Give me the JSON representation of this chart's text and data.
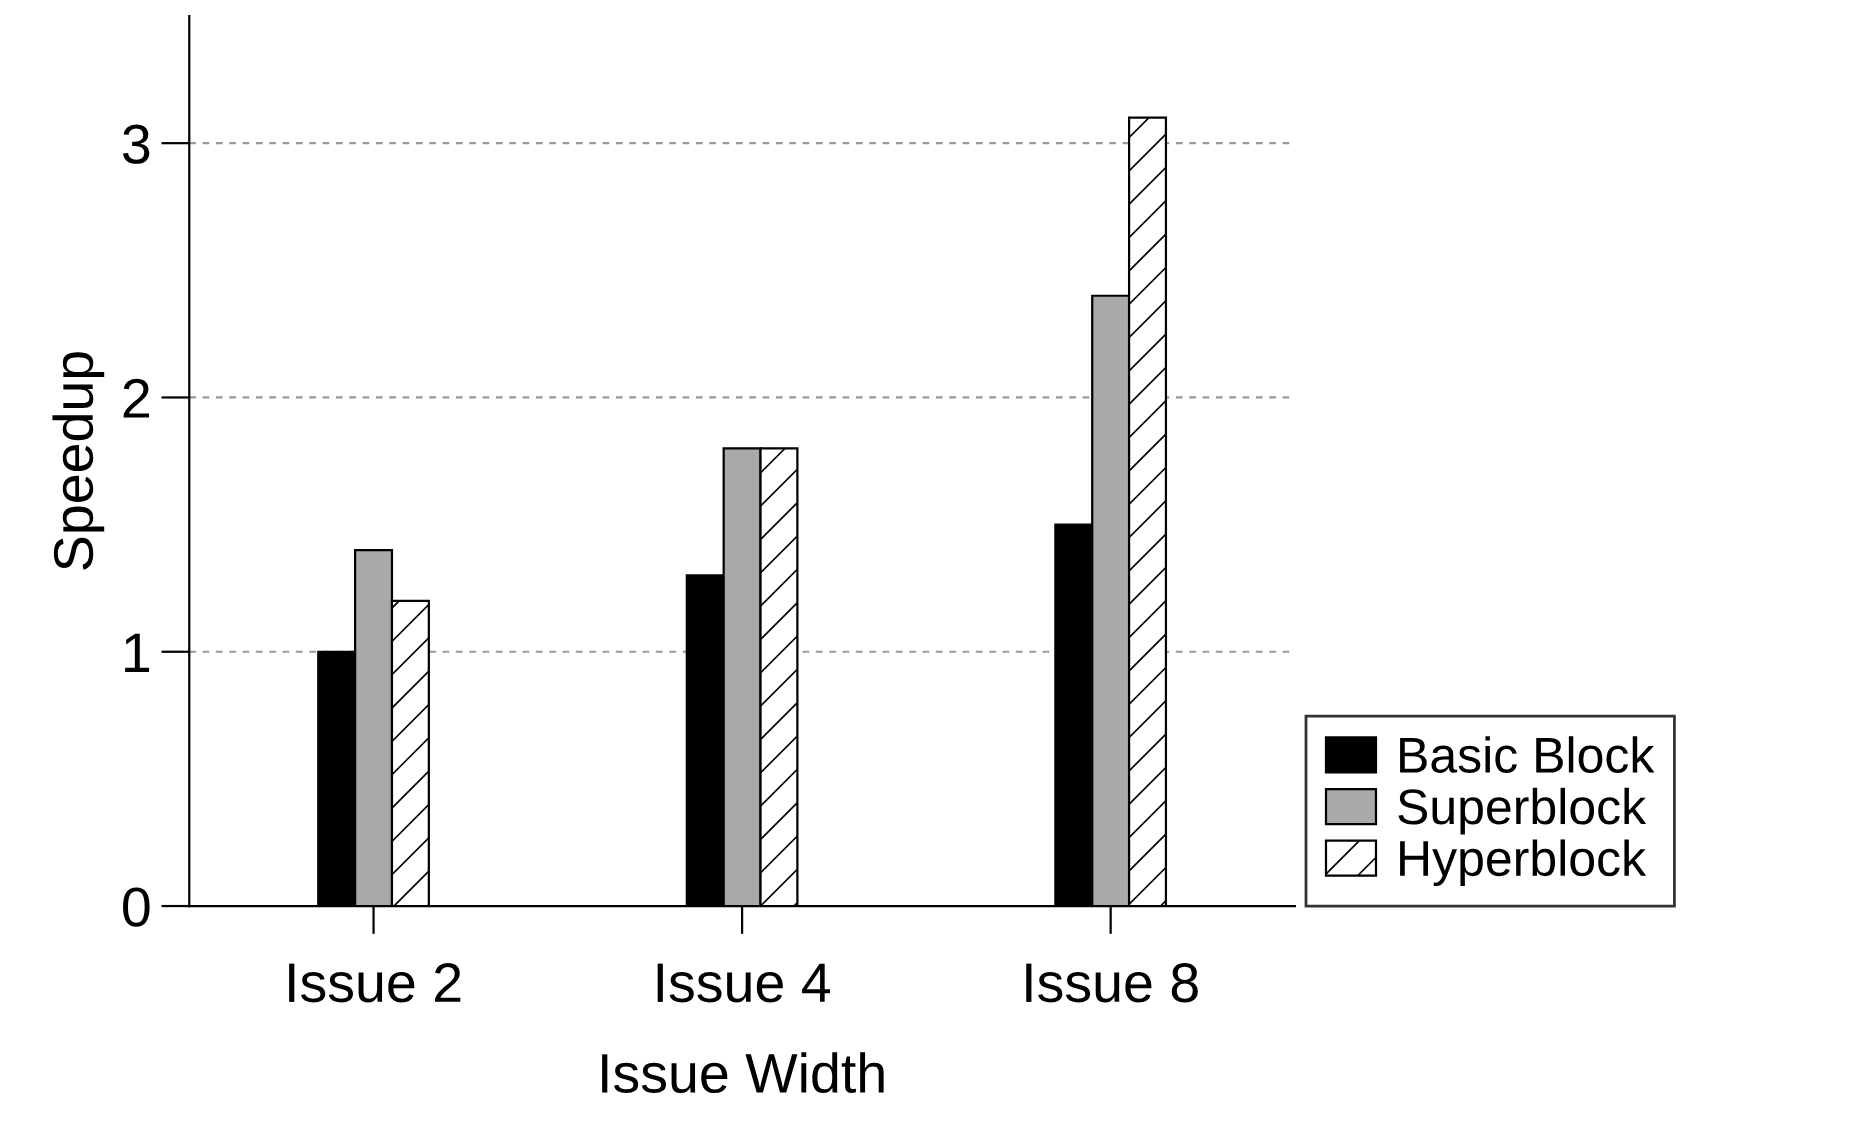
{
  "chart_data": {
    "type": "bar",
    "xlabel": "Issue Width",
    "ylabel": "Speedup",
    "categories": [
      "Issue 2",
      "Issue 4",
      "Issue 8"
    ],
    "series": [
      {
        "name": "Basic Block",
        "color": "#000000",
        "values": [
          1.0,
          1.3,
          1.5
        ]
      },
      {
        "name": "Superblock",
        "color": "#a9a9a9",
        "values": [
          1.4,
          1.8,
          2.4
        ]
      },
      {
        "name": "Hyperblock",
        "color": "#ffffff",
        "values": [
          1.2,
          1.8,
          3.1
        ]
      }
    ],
    "ylim": [
      0,
      3.5
    ],
    "yticks": [
      0,
      1,
      2,
      3
    ],
    "grid": "y",
    "legend": "bottom right"
  }
}
